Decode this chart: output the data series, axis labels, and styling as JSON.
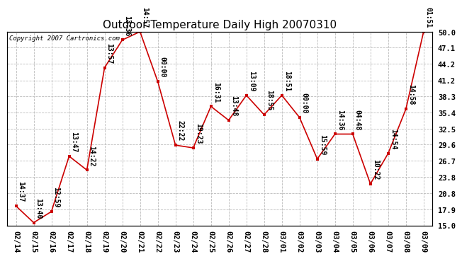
{
  "title": "Outdoor Temperature Daily High 20070310",
  "copyright": "Copyright 2007 Cartronics.com",
  "dates": [
    "02/14",
    "02/15",
    "02/16",
    "02/17",
    "02/18",
    "02/19",
    "02/20",
    "02/21",
    "02/22",
    "02/23",
    "02/24",
    "02/25",
    "02/26",
    "02/27",
    "02/28",
    "03/01",
    "03/02",
    "03/03",
    "03/04",
    "03/05",
    "03/06",
    "03/07",
    "03/08",
    "03/09"
  ],
  "values": [
    18.5,
    15.5,
    17.5,
    27.5,
    25.0,
    43.5,
    48.5,
    50.0,
    41.0,
    29.5,
    29.0,
    36.5,
    34.0,
    38.5,
    35.0,
    38.5,
    34.5,
    27.0,
    31.5,
    31.5,
    22.5,
    28.0,
    36.0,
    50.0
  ],
  "labels": [
    "14:37",
    "13:40",
    "12:59",
    "13:47",
    "14:22",
    "13:57",
    "13:36",
    "14:57",
    "00:00",
    "22:22",
    "19:23",
    "16:31",
    "13:48",
    "13:09",
    "18:55",
    "18:51",
    "00:00",
    "15:59",
    "14:36",
    "04:48",
    "10:22",
    "14:54",
    "14:58",
    "01:51"
  ],
  "ylim": [
    15.0,
    50.0
  ],
  "yticks": [
    15.0,
    17.9,
    20.8,
    23.8,
    26.7,
    29.6,
    32.5,
    35.4,
    38.3,
    41.2,
    44.2,
    47.1,
    50.0
  ],
  "line_color": "#cc0000",
  "marker_color": "#cc0000",
  "bg_color": "#ffffff",
  "grid_color": "#bbbbbb",
  "title_fontsize": 11,
  "label_fontsize": 7,
  "tick_fontsize": 7.5,
  "copyright_fontsize": 6.5
}
